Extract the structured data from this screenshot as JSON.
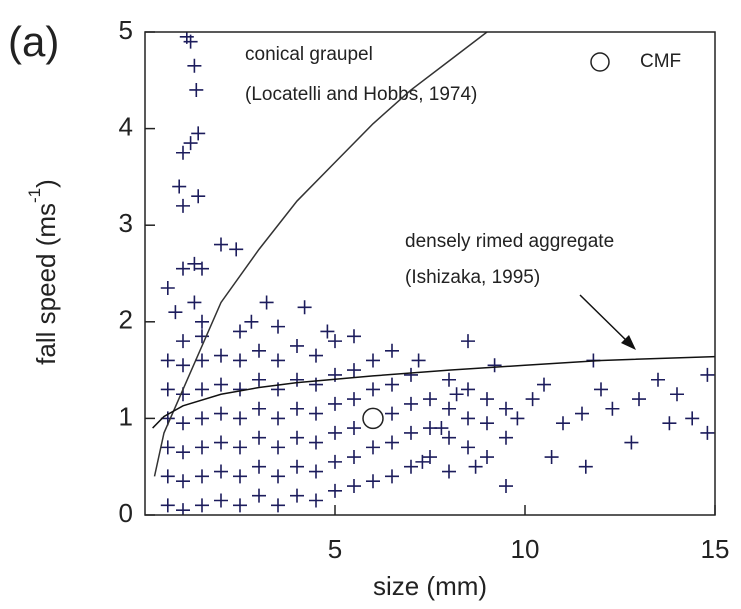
{
  "chart_data": {
    "type": "scatter",
    "panel_label": "(a)",
    "x_label": "size (mm)",
    "y_label": "fall speed (ms",
    "y_label_sup": "-1",
    "y_label_end": ")",
    "xlim": [
      0,
      15
    ],
    "ylim": [
      0,
      5
    ],
    "xticks": [
      5,
      10,
      15
    ],
    "yticks": [
      0,
      1,
      2,
      3,
      4,
      5
    ],
    "points": {
      "color": "#1c1c5c",
      "x": [
        1.1,
        1.2,
        1.3,
        1.35,
        1.4,
        1.2,
        1.0,
        0.9,
        1.0,
        1.4,
        2.0,
        2.4,
        1.0,
        1.3,
        1.5,
        0.6,
        1.3,
        3.2,
        4.2,
        2.8,
        1.5,
        0.8,
        3.5,
        4.8,
        5.5,
        6.5,
        8.5,
        7.2,
        9.2,
        11.8,
        12.0,
        13.5,
        14.8,
        14.8,
        14.4,
        13.8,
        12.8,
        12.3,
        11.6,
        10.7,
        11.0,
        10.2,
        9.5,
        8.7,
        7.3,
        7.8,
        8.2,
        9.8,
        10.5,
        11.5,
        13.0,
        14.0,
        0.6,
        0.6,
        0.6,
        0.6,
        0.6,
        0.6,
        1.0,
        1.0,
        1.0,
        1.0,
        1.0,
        1.0,
        1.0,
        1.5,
        1.5,
        1.5,
        1.5,
        1.5,
        1.5,
        1.5,
        2.0,
        2.0,
        2.0,
        2.0,
        2.0,
        2.0,
        2.5,
        2.5,
        2.5,
        2.5,
        2.5,
        2.5,
        2.5,
        3.0,
        3.0,
        3.0,
        3.0,
        3.0,
        3.0,
        3.5,
        3.5,
        3.5,
        3.5,
        3.5,
        3.5,
        4.0,
        4.0,
        4.0,
        4.0,
        4.0,
        4.0,
        4.5,
        4.5,
        4.5,
        4.5,
        4.5,
        4.5,
        5.0,
        5.0,
        5.0,
        5.0,
        5.0,
        5.0,
        5.5,
        5.5,
        5.5,
        5.5,
        5.5,
        6.0,
        6.0,
        6.0,
        6.0,
        6.5,
        6.5,
        6.5,
        6.5,
        7.0,
        7.0,
        7.0,
        7.0,
        7.5,
        7.5,
        7.5,
        8.0,
        8.0,
        8.0,
        8.0,
        8.5,
        8.5,
        8.5,
        9.0,
        9.0,
        9.0,
        9.5,
        9.5
      ],
      "y": [
        4.95,
        4.9,
        4.65,
        4.4,
        3.95,
        3.85,
        3.75,
        3.4,
        3.2,
        3.3,
        2.8,
        2.75,
        2.55,
        2.6,
        2.55,
        2.35,
        2.2,
        2.2,
        2.15,
        2.0,
        2.0,
        2.1,
        1.95,
        1.9,
        1.85,
        1.7,
        1.8,
        1.6,
        1.55,
        1.6,
        1.3,
        1.4,
        1.45,
        0.85,
        1.0,
        0.95,
        0.75,
        1.1,
        0.5,
        0.6,
        0.95,
        1.2,
        0.3,
        0.5,
        0.55,
        0.9,
        1.25,
        1.0,
        1.35,
        1.05,
        1.2,
        1.25,
        0.1,
        0.4,
        0.7,
        1.0,
        1.3,
        1.6,
        0.05,
        0.35,
        0.65,
        0.95,
        1.25,
        1.55,
        1.8,
        0.1,
        0.4,
        0.7,
        1.0,
        1.3,
        1.6,
        1.85,
        0.15,
        0.45,
        0.75,
        1.05,
        1.35,
        1.65,
        0.1,
        0.4,
        0.7,
        1.0,
        1.3,
        1.6,
        1.9,
        0.2,
        0.5,
        0.8,
        1.1,
        1.4,
        1.7,
        0.1,
        0.4,
        0.7,
        1.0,
        1.3,
        1.6,
        0.2,
        0.5,
        0.8,
        1.1,
        1.4,
        1.75,
        0.15,
        0.45,
        0.75,
        1.05,
        1.35,
        1.65,
        0.25,
        0.55,
        0.85,
        1.15,
        1.45,
        1.8,
        0.3,
        0.6,
        0.9,
        1.2,
        1.5,
        0.35,
        0.7,
        1.3,
        1.6,
        0.4,
        0.75,
        1.05,
        1.35,
        0.5,
        0.85,
        1.15,
        1.45,
        0.6,
        0.9,
        1.2,
        0.45,
        0.8,
        1.1,
        1.4,
        0.7,
        1.0,
        1.3,
        0.6,
        0.95,
        1.2,
        0.8,
        1.1
      ]
    },
    "curves": [
      {
        "name": "conical graupel",
        "source": "(Locatelli and Hobbs, 1974)",
        "color": "#333333",
        "x": [
          0.25,
          0.5,
          1,
          2,
          3,
          4,
          5,
          6,
          7,
          8,
          9
        ],
        "y": [
          0.4,
          0.85,
          1.3,
          2.2,
          2.75,
          3.25,
          3.65,
          4.05,
          4.4,
          4.7,
          5.0
        ]
      },
      {
        "name": "densely rimed aggregate",
        "source": "(Ishizaka, 1995)",
        "color": "#111111",
        "x": [
          0.2,
          0.5,
          1,
          2,
          3,
          4,
          6,
          8,
          10,
          12,
          15
        ],
        "y": [
          0.9,
          1.02,
          1.13,
          1.25,
          1.32,
          1.37,
          1.44,
          1.5,
          1.55,
          1.6,
          1.64
        ]
      }
    ],
    "cmf": {
      "name": "CMF",
      "x": 6,
      "y": 1.0
    }
  }
}
